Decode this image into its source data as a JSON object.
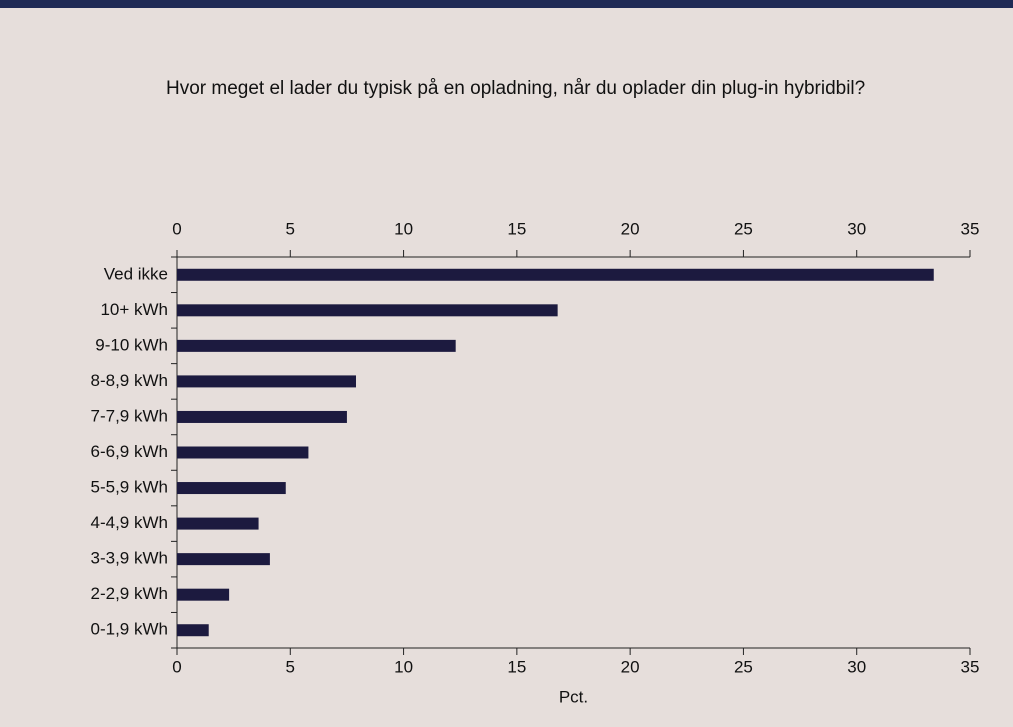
{
  "chart_data": {
    "type": "bar",
    "orientation": "horizontal",
    "title": "Hvor meget el lader du typisk på en opladning, når du oplader din plug-in hybridbil?",
    "x_label": "Pct.",
    "categories": [
      "Ved ikke",
      "10+ kWh",
      "9-10 kWh",
      "8-8,9 kWh",
      "7-7,9 kWh",
      "6-6,9 kWh",
      "5-5,9 kWh",
      "4-4,9 kWh",
      "3-3,9 kWh",
      "2-2,9 kWh",
      "0-1,9 kWh"
    ],
    "values": [
      33.4,
      16.8,
      12.3,
      7.9,
      7.5,
      5.8,
      4.8,
      3.6,
      4.1,
      2.3,
      1.4
    ],
    "color": "#1c1a3f",
    "xlim": [
      0,
      35
    ],
    "xticks": [
      0,
      5,
      10,
      15,
      20,
      25,
      30,
      35
    ]
  }
}
